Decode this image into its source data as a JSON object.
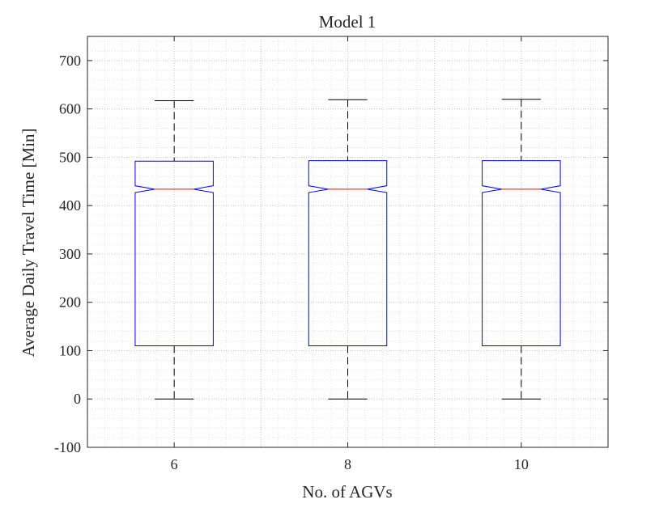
{
  "chart_data": {
    "type": "boxplot",
    "title": "Model 1",
    "xlabel": "No. of AGVs",
    "ylabel": "Average Daily Travel Time [Min]",
    "ylim": [
      -100,
      750
    ],
    "xlim": [
      5,
      11
    ],
    "yticks": [
      -100,
      0,
      100,
      200,
      300,
      400,
      500,
      600,
      700
    ],
    "xticks": [
      6,
      8,
      10
    ],
    "grid": true,
    "minor_grid": true,
    "notched": true,
    "colors": {
      "box": "#0000ff",
      "median": "#ff0000",
      "whisker": "#000000",
      "grid": "#c8c8c8",
      "axis": "#262626"
    },
    "boxes": [
      {
        "x": 6,
        "label": "6",
        "min": 0,
        "q1": 110,
        "median": 434,
        "q3": 492,
        "max": 617,
        "notch_low": 427,
        "notch_high": 441
      },
      {
        "x": 8,
        "label": "8",
        "min": 0,
        "q1": 110,
        "median": 434,
        "q3": 493,
        "max": 619,
        "notch_low": 427,
        "notch_high": 441
      },
      {
        "x": 10,
        "label": "10",
        "min": 0,
        "q1": 110,
        "median": 434,
        "q3": 493,
        "max": 620,
        "notch_low": 427,
        "notch_high": 441
      }
    ]
  }
}
